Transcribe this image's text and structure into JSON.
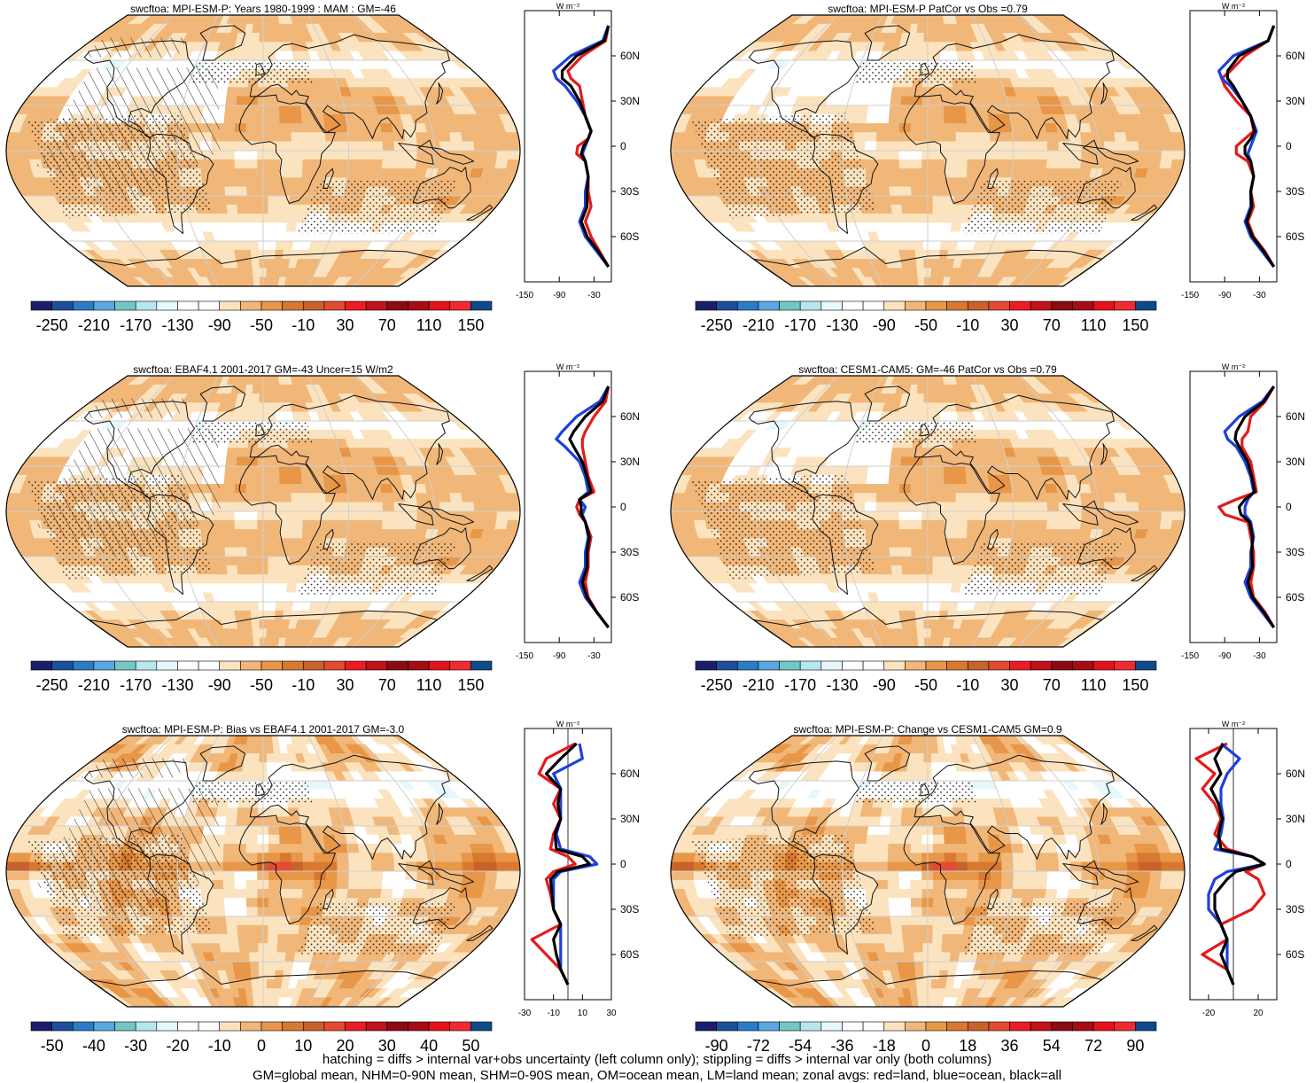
{
  "colors": {
    "land_line": "#e41a1c",
    "ocean_line": "#1f3fdd",
    "all_line": "#000000",
    "coast": "#111111",
    "grid": "#cfcfcf"
  },
  "palettes": {
    "absolute": [
      "#1b1f6b",
      "#1d4f9a",
      "#2b7cc7",
      "#5ba7e0",
      "#72c6c6",
      "#b7e7ee",
      "#e6f8fb",
      "#ffffff",
      "#ffffff",
      "#fbe3bf",
      "#f1b779",
      "#e89647",
      "#d8792f",
      "#c9622a",
      "#e24a33",
      "#eb1c24",
      "#c0121a",
      "#8b0b12",
      "#a40d14",
      "#e3131b",
      "#f02a31",
      "#0f4a8a"
    ],
    "bias": [
      "#1b1f6b",
      "#1d4f9a",
      "#2b7cc7",
      "#5ba7e0",
      "#72c6c6",
      "#b7e7ee",
      "#e6f8fb",
      "#ffffff",
      "#ffffff",
      "#fbe3bf",
      "#f1b779",
      "#e89647",
      "#d8792f",
      "#c9622a",
      "#e24a33",
      "#eb1c24",
      "#c0121a",
      "#8b0b12",
      "#a40d14",
      "#e3131b",
      "#f02a31",
      "#0f4a8a"
    ]
  },
  "chart_data": [
    {
      "id": "p1",
      "type": "heatmap",
      "title": "swcftoa: MPI-ESM-P: Years 1980-1999 : MAM : GM=-46",
      "colorbar_labels": [
        "-250",
        "-210",
        "-170",
        "-130",
        "-90",
        "-50",
        "-10",
        "30",
        "70",
        "110",
        "150"
      ],
      "palette": "absolute",
      "hatched": true,
      "stippled": true,
      "zonal": {
        "type": "line",
        "units": "W m⁻²",
        "x_ticks": [
          "-150",
          "-90",
          "-30"
        ],
        "xlim": [
          -150,
          0
        ],
        "lat_ticks": [
          "60N",
          "30N",
          "0",
          "30S",
          "60S"
        ],
        "lat_values": [
          60,
          30,
          0,
          -30,
          -60
        ],
        "lat": [
          80,
          70,
          60,
          50,
          45,
          40,
          30,
          20,
          10,
          5,
          0,
          -5,
          -10,
          -20,
          -30,
          -40,
          -50,
          -60,
          -70,
          -80
        ],
        "series": [
          {
            "key": "land",
            "values": [
              -5,
              -10,
              -50,
              -75,
              -70,
              -55,
              -50,
              -45,
              -35,
              -40,
              -58,
              -60,
              -45,
              -40,
              -40,
              -35,
              -45,
              -35,
              -20,
              -5
            ]
          },
          {
            "key": "ocean",
            "values": [
              -5,
              -15,
              -70,
              -100,
              -95,
              -80,
              -60,
              -45,
              -35,
              -40,
              -45,
              -50,
              -45,
              -40,
              -45,
              -45,
              -55,
              -45,
              -25,
              -5
            ]
          },
          {
            "key": "all",
            "values": [
              -5,
              -12,
              -60,
              -85,
              -85,
              -70,
              -55,
              -45,
              -35,
              -40,
              -48,
              -52,
              -45,
              -40,
              -42,
              -42,
              -52,
              -42,
              -22,
              -5
            ]
          }
        ]
      }
    },
    {
      "id": "p2",
      "type": "heatmap",
      "title": "swcftoa: MPI-ESM-P PatCor vs Obs =0.79",
      "colorbar_labels": [
        "-250",
        "-210",
        "-170",
        "-130",
        "-90",
        "-50",
        "-10",
        "30",
        "70",
        "110",
        "150"
      ],
      "palette": "absolute",
      "hatched": false,
      "stippled": true,
      "zonal": {
        "type": "line",
        "units": "W m⁻²",
        "x_ticks": [
          "-150",
          "-90",
          "-30"
        ],
        "xlim": [
          -150,
          0
        ],
        "lat_ticks": [
          "60N",
          "30N",
          "0",
          "30S",
          "60S"
        ],
        "lat_values": [
          60,
          30,
          0,
          -30,
          -60
        ],
        "lat": [
          80,
          70,
          60,
          50,
          45,
          40,
          30,
          20,
          10,
          5,
          0,
          -5,
          -10,
          -20,
          -30,
          -40,
          -50,
          -60,
          -70,
          -80
        ],
        "series": [
          {
            "key": "land",
            "values": [
              -5,
              -15,
              -55,
              -80,
              -95,
              -90,
              -70,
              -45,
              -40,
              -55,
              -70,
              -70,
              -50,
              -40,
              -45,
              -40,
              -50,
              -40,
              -20,
              -5
            ]
          },
          {
            "key": "ocean",
            "values": [
              -5,
              -15,
              -75,
              -100,
              -95,
              -80,
              -60,
              -45,
              -35,
              -40,
              -45,
              -50,
              -45,
              -40,
              -45,
              -45,
              -55,
              -45,
              -25,
              -5
            ]
          },
          {
            "key": "all",
            "values": [
              -5,
              -15,
              -65,
              -85,
              -85,
              -75,
              -60,
              -45,
              -38,
              -45,
              -55,
              -55,
              -45,
              -40,
              -45,
              -43,
              -52,
              -42,
              -22,
              -5
            ]
          }
        ]
      }
    },
    {
      "id": "p3",
      "type": "heatmap",
      "title": "swcftoa: EBAF4.1 2001-2017 GM=-43 Uncer=15 W/m2",
      "colorbar_labels": [
        "-250",
        "-210",
        "-170",
        "-130",
        "-90",
        "-50",
        "-10",
        "30",
        "70",
        "110",
        "150"
      ],
      "palette": "absolute",
      "hatched": true,
      "stippled": true,
      "zonal": {
        "type": "line",
        "units": "W m⁻²",
        "x_ticks": [
          "-150",
          "-90",
          "-30"
        ],
        "xlim": [
          -150,
          0
        ],
        "lat_ticks": [
          "60N",
          "30N",
          "0",
          "30S",
          "60S"
        ],
        "lat_values": [
          60,
          30,
          0,
          -30,
          -60
        ],
        "lat": [
          80,
          70,
          60,
          50,
          45,
          40,
          30,
          20,
          10,
          5,
          0,
          -5,
          -10,
          -20,
          -30,
          -40,
          -50,
          -60,
          -70,
          -80
        ],
        "series": [
          {
            "key": "land",
            "values": [
              -5,
              -10,
              -30,
              -45,
              -50,
              -50,
              -45,
              -40,
              -30,
              -55,
              -60,
              -55,
              -45,
              -35,
              -40,
              -40,
              -45,
              -40,
              -25,
              -5
            ]
          },
          {
            "key": "ocean",
            "values": [
              -5,
              -20,
              -60,
              -85,
              -95,
              -80,
              -55,
              -45,
              -40,
              -55,
              -45,
              -50,
              -45,
              -40,
              -45,
              -45,
              -55,
              -45,
              -25,
              -5
            ]
          },
          {
            "key": "all",
            "values": [
              -5,
              -15,
              -45,
              -65,
              -72,
              -65,
              -50,
              -42,
              -35,
              -55,
              -52,
              -52,
              -45,
              -38,
              -42,
              -42,
              -50,
              -42,
              -25,
              -5
            ]
          }
        ]
      }
    },
    {
      "id": "p4",
      "type": "heatmap",
      "title": "swcftoa: CESM1-CAM5: GM=-46 PatCor vs Obs =0.79",
      "colorbar_labels": [
        "-250",
        "-210",
        "-170",
        "-130",
        "-90",
        "-50",
        "-10",
        "30",
        "70",
        "110",
        "150"
      ],
      "palette": "absolute",
      "hatched": false,
      "stippled": true,
      "zonal": {
        "type": "line",
        "units": "W m⁻²",
        "x_ticks": [
          "-150",
          "-90",
          "-30"
        ],
        "xlim": [
          -150,
          0
        ],
        "lat_ticks": [
          "60N",
          "30N",
          "0",
          "30S",
          "60S"
        ],
        "lat_values": [
          60,
          30,
          0,
          -30,
          -60
        ],
        "lat": [
          80,
          70,
          60,
          50,
          45,
          40,
          30,
          20,
          10,
          5,
          0,
          -5,
          -10,
          -20,
          -30,
          -40,
          -50,
          -60,
          -70,
          -80
        ],
        "series": [
          {
            "key": "land",
            "values": [
              -5,
              -20,
              -45,
              -50,
              -60,
              -60,
              -45,
              -40,
              -35,
              -70,
              -100,
              -90,
              -50,
              -45,
              -40,
              -40,
              -45,
              -40,
              -20,
              -5
            ]
          },
          {
            "key": "ocean",
            "values": [
              -5,
              -25,
              -65,
              -90,
              -85,
              -70,
              -55,
              -45,
              -40,
              -50,
              -55,
              -55,
              -45,
              -40,
              -45,
              -45,
              -55,
              -45,
              -25,
              -5
            ]
          },
          {
            "key": "all",
            "values": [
              -5,
              -22,
              -55,
              -70,
              -72,
              -65,
              -50,
              -43,
              -38,
              -55,
              -65,
              -62,
              -47,
              -42,
              -43,
              -42,
              -50,
              -42,
              -22,
              -5
            ]
          }
        ]
      }
    },
    {
      "id": "p5",
      "type": "heatmap",
      "title": "swcftoa: MPI-ESM-P: Bias vs EBAF4.1 2001-2017 GM=-3.0",
      "colorbar_labels": [
        "-50",
        "-40",
        "-30",
        "-20",
        "-10",
        "0",
        "10",
        "20",
        "30",
        "40",
        "50"
      ],
      "palette": "bias",
      "hatched": true,
      "stippled": true,
      "zonal": {
        "type": "line",
        "units": "W m⁻²",
        "x_ticks": [
          "-30",
          "-10",
          "10",
          "30"
        ],
        "xlim": [
          -30,
          30
        ],
        "lat_ticks": [
          "60N",
          "30N",
          "0",
          "30S",
          "60S"
        ],
        "lat_values": [
          60,
          30,
          0,
          -30,
          -60
        ],
        "lat": [
          80,
          70,
          60,
          50,
          40,
          30,
          20,
          10,
          5,
          0,
          -5,
          -10,
          -20,
          -30,
          -40,
          -50,
          -60,
          -70,
          -80
        ],
        "series": [
          {
            "key": "land",
            "values": [
              5,
              -15,
              -20,
              -5,
              -10,
              -5,
              -10,
              -12,
              0,
              5,
              -10,
              -15,
              -12,
              -10,
              -5,
              -25,
              -15,
              -5,
              0
            ]
          },
          {
            "key": "ocean",
            "values": [
              8,
              10,
              -10,
              -5,
              -5,
              -5,
              -8,
              -5,
              15,
              20,
              -5,
              -10,
              -10,
              -10,
              -5,
              -5,
              -5,
              -5,
              0
            ]
          },
          {
            "key": "all",
            "values": [
              6,
              -5,
              -15,
              -5,
              -7,
              -5,
              -9,
              -8,
              10,
              15,
              -7,
              -12,
              -11,
              -10,
              -5,
              -10,
              -8,
              -5,
              0
            ]
          }
        ]
      }
    },
    {
      "id": "p6",
      "type": "heatmap",
      "title": "swcftoa: MPI-ESM-P: Change vs CESM1-CAM5 GM=0.9",
      "colorbar_labels": [
        "-90",
        "-72",
        "-54",
        "-36",
        "-18",
        "0",
        "18",
        "36",
        "54",
        "72",
        "90"
      ],
      "palette": "bias",
      "hatched": false,
      "stippled": true,
      "zonal": {
        "type": "line",
        "units": "W m⁻²",
        "x_ticks": [
          "-20",
          "20"
        ],
        "xlim": [
          -35,
          35
        ],
        "lat_ticks": [
          "60N",
          "30N",
          "0",
          "30S",
          "60S"
        ],
        "lat_values": [
          60,
          30,
          0,
          -30,
          -60
        ],
        "lat": [
          80,
          70,
          60,
          50,
          40,
          30,
          20,
          10,
          5,
          0,
          -5,
          -10,
          -20,
          -30,
          -40,
          -50,
          -60,
          -70,
          -80
        ],
        "series": [
          {
            "key": "land",
            "values": [
              -5,
              -30,
              -15,
              -25,
              -15,
              -10,
              -15,
              -5,
              15,
              25,
              10,
              20,
              25,
              15,
              -10,
              -5,
              -25,
              -5,
              0
            ]
          },
          {
            "key": "ocean",
            "values": [
              -10,
              5,
              -5,
              -10,
              -10,
              -8,
              -10,
              -15,
              15,
              25,
              -5,
              -15,
              -20,
              -20,
              -10,
              -5,
              -5,
              -5,
              0
            ]
          },
          {
            "key": "all",
            "values": [
              -8,
              -15,
              -10,
              -18,
              -12,
              -9,
              -12,
              -10,
              15,
              25,
              2,
              -5,
              -15,
              -15,
              -10,
              -5,
              -10,
              -5,
              0
            ]
          }
        ]
      }
    }
  ],
  "footer": {
    "line1": "hatching = diffs > internal var+obs uncertainty (left column only); stippling = diffs > internal var only (both columns)",
    "line2": "GM=global mean, NHM=0-90N mean, SHM=0-90S mean, OM=ocean mean, LM=land mean; zonal avgs: red=land, blue=ocean, black=all"
  }
}
